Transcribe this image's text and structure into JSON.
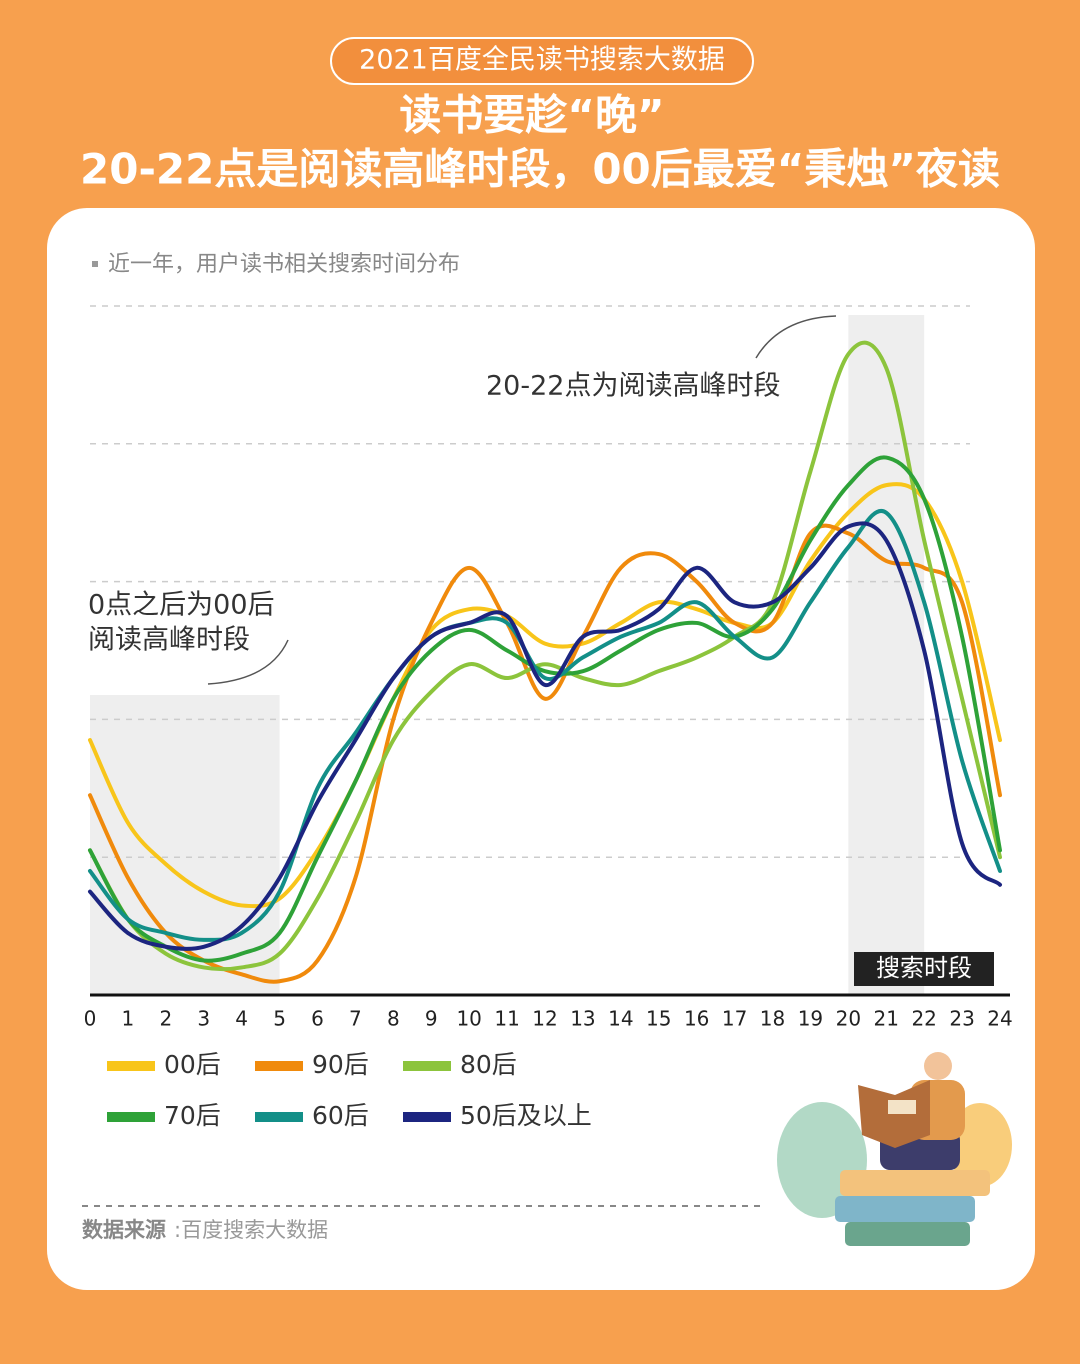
{
  "header": {
    "badge": "2021百度全民读书搜索大数据",
    "title_line1": "读书要趁“晚”",
    "title_line2": "20-22点是阅读高峰时段，00后最爱“秉烛”夜读"
  },
  "chart_data": {
    "type": "line",
    "subtitle": "近一年，用户读书相关搜索时间分布",
    "x": [
      0,
      1,
      2,
      3,
      4,
      5,
      6,
      7,
      8,
      9,
      10,
      11,
      12,
      13,
      14,
      15,
      16,
      17,
      18,
      19,
      20,
      21,
      22,
      23,
      24
    ],
    "xlim": [
      0,
      24
    ],
    "ylim": [
      0,
      100
    ],
    "yticks": [
      0,
      20,
      40,
      60,
      80,
      100
    ],
    "grid": true,
    "highlight_ranges": [
      [
        0,
        5
      ],
      [
        20,
        22
      ]
    ],
    "highlight_label": "搜索时段",
    "annotations": [
      "0点之后为00后",
      "阅读高峰时段",
      "20-22点为阅读高峰时段"
    ],
    "series": [
      {
        "name": "00后",
        "color": "#f8c51a",
        "values": [
          37,
          25,
          19,
          15,
          13,
          14,
          21,
          31,
          43,
          53,
          56,
          55,
          51,
          51,
          54,
          57,
          56,
          54,
          54,
          63,
          70,
          74,
          72,
          60,
          37
        ]
      },
      {
        "name": "90后",
        "color": "#f08a0c",
        "values": [
          29,
          17,
          9,
          5,
          3,
          2,
          5,
          17,
          40,
          54,
          62,
          54,
          43,
          52,
          62,
          64,
          60,
          54,
          54,
          67,
          67,
          63,
          62,
          57,
          29
        ]
      },
      {
        "name": "80后",
        "color": "#8cc43c",
        "values": [
          21,
          11,
          6,
          4,
          4,
          6,
          14,
          25,
          37,
          44,
          48,
          46,
          48,
          46,
          45,
          47,
          49,
          52,
          57,
          76,
          93,
          91,
          66,
          43,
          20
        ]
      },
      {
        "name": "70后",
        "color": "#2ea238",
        "values": [
          21,
          11,
          7,
          5,
          6,
          9,
          20,
          31,
          43,
          50,
          53,
          50,
          47,
          47,
          50,
          53,
          54,
          52,
          56,
          66,
          74,
          78,
          72,
          52,
          21
        ]
      },
      {
        "name": "60后",
        "color": "#138f88",
        "values": [
          18,
          11,
          9,
          8,
          9,
          15,
          30,
          38,
          46,
          52,
          54,
          54,
          46,
          49,
          52,
          54,
          57,
          52,
          49,
          57,
          65,
          70,
          57,
          34,
          18
        ]
      },
      {
        "name": "50后及以上",
        "color": "#1c2580",
        "values": [
          15,
          9,
          7,
          7,
          10,
          17,
          28,
          37,
          46,
          52,
          54,
          55,
          45,
          52,
          53,
          56,
          62,
          57,
          57,
          62,
          68,
          66,
          50,
          22,
          16
        ]
      }
    ]
  },
  "footer": {
    "source_label": "数据来源",
    "source_value": ":百度搜索大数据"
  }
}
